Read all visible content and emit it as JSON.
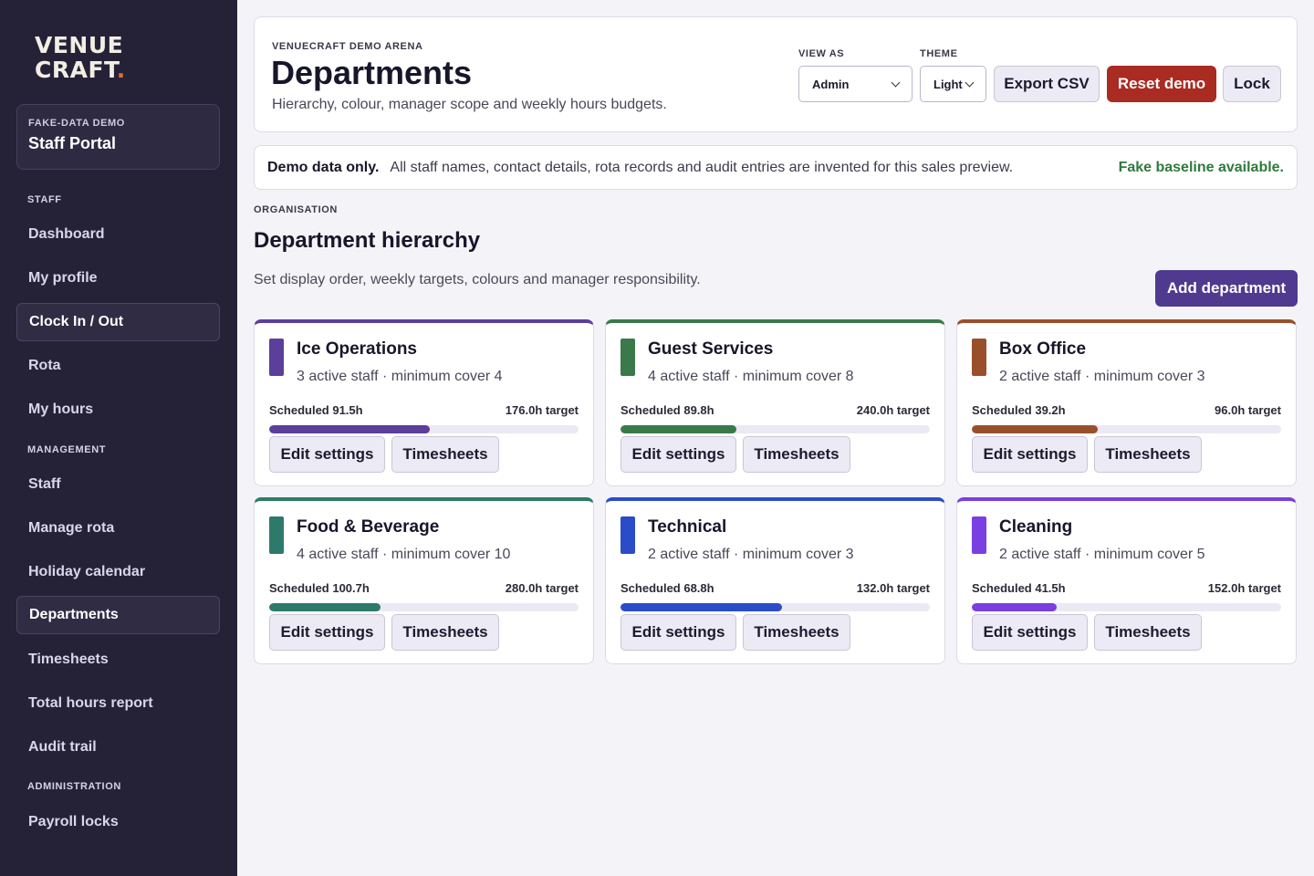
{
  "sidebar": {
    "logo_line1": "VENUE",
    "logo_line2": "CRAFT",
    "logo_dot": ".",
    "portal_kicker": "FAKE-DATA DEMO",
    "portal_title": "Staff Portal",
    "sections": [
      {
        "label": "STAFF"
      },
      {
        "label": "MANAGEMENT"
      },
      {
        "label": "ADMINISTRATION"
      }
    ],
    "items": [
      {
        "label": "Dashboard"
      },
      {
        "label": "My profile"
      },
      {
        "label": "Clock In / Out"
      },
      {
        "label": "Rota"
      },
      {
        "label": "My hours"
      },
      {
        "label": "Staff"
      },
      {
        "label": "Manage rota"
      },
      {
        "label": "Holiday calendar"
      },
      {
        "label": "Departments"
      },
      {
        "label": "Timesheets"
      },
      {
        "label": "Total hours report"
      },
      {
        "label": "Audit trail"
      },
      {
        "label": "Payroll locks"
      }
    ]
  },
  "header": {
    "kicker": "VENUECRAFT DEMO ARENA",
    "title": "Departments",
    "subtitle": "Hierarchy, colour, manager scope and weekly hours budgets.",
    "view_as_label": "VIEW AS",
    "view_as_value": "Admin",
    "theme_label": "THEME",
    "theme_value": "Light",
    "export_label": "Export CSV",
    "reset_label": "Reset demo",
    "lock_label": "Lock"
  },
  "notice": {
    "bold": "Demo data only.",
    "message": "All staff names, contact details, rota records and audit entries are invented for this sales preview.",
    "status": "Fake baseline available."
  },
  "section": {
    "kicker": "ORGANISATION",
    "title": "Department hierarchy",
    "subtitle": "Set display order, weekly targets, colours and manager responsibility.",
    "add_label": "Add department"
  },
  "card_actions": {
    "edit_label": "Edit settings",
    "timesheets_label": "Timesheets"
  },
  "departments": [
    {
      "name": "Ice Operations",
      "meta": "3 active staff · minimum cover 4",
      "scheduled": "Scheduled 91.5h",
      "target": "176.0h target",
      "progress": 0.52,
      "color": "#5b3f9a"
    },
    {
      "name": "Guest Services",
      "meta": "4 active staff · minimum cover 8",
      "scheduled": "Scheduled 89.8h",
      "target": "240.0h target",
      "progress": 0.374,
      "color": "#3a7a4a"
    },
    {
      "name": "Box Office",
      "meta": "2 active staff · minimum cover 3",
      "scheduled": "Scheduled 39.2h",
      "target": "96.0h target",
      "progress": 0.408,
      "color": "#9a4f2b"
    },
    {
      "name": "Food & Beverage",
      "meta": "4 active staff · minimum cover 10",
      "scheduled": "Scheduled 100.7h",
      "target": "280.0h target",
      "progress": 0.36,
      "color": "#2e7a6a"
    },
    {
      "name": "Technical",
      "meta": "2 active staff · minimum cover 3",
      "scheduled": "Scheduled 68.8h",
      "target": "132.0h target",
      "progress": 0.521,
      "color": "#2b4cc9"
    },
    {
      "name": "Cleaning",
      "meta": "2 active staff · minimum cover 5",
      "scheduled": "Scheduled 41.5h",
      "target": "152.0h target",
      "progress": 0.273,
      "color": "#7a3fe0"
    }
  ]
}
